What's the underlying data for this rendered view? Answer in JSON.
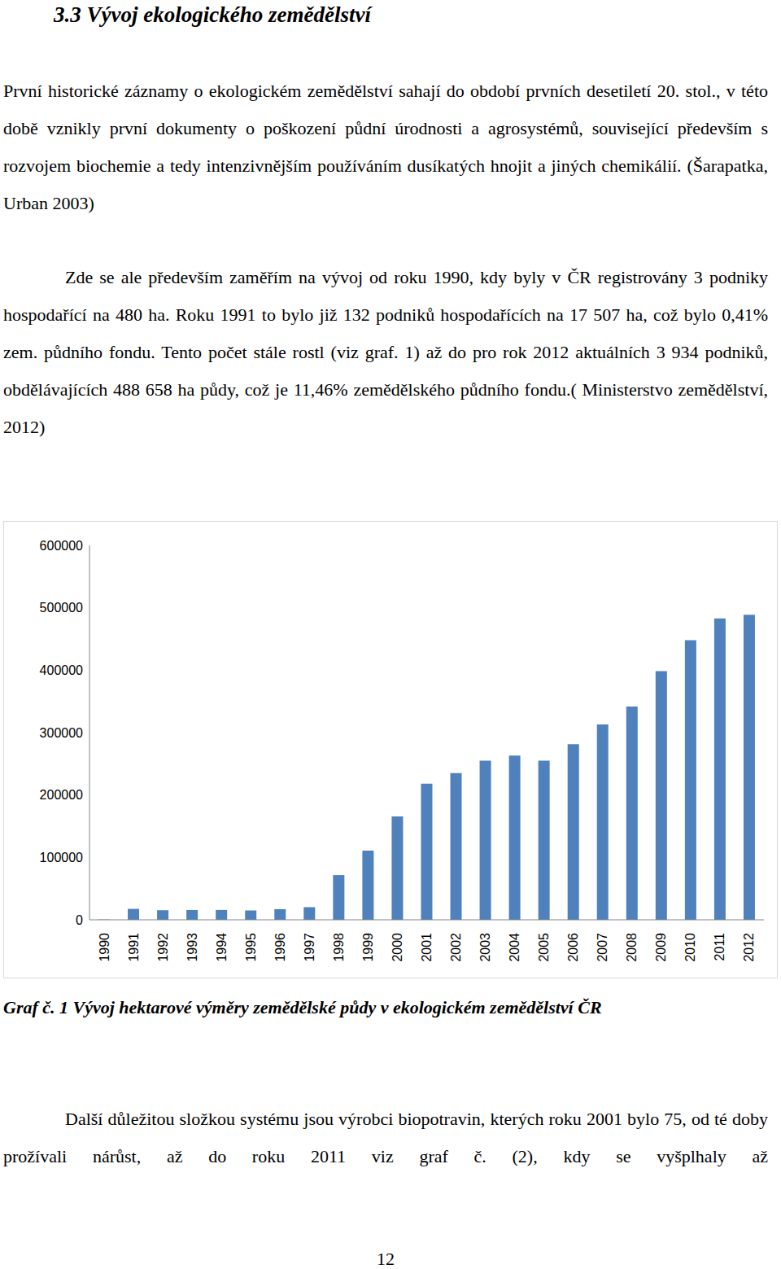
{
  "heading": "3.3 Vývoj ekologického zemědělství",
  "paragraphs": [
    "První historické záznamy o ekologickém zemědělství sahají do období prvních desetiletí 20. stol., v této době vznikly první dokumenty o poškození půdní úrodnosti a agrosystémů, související především s rozvojem biochemie a tedy intenzivnějším používáním dusíkatých hnojit a jiných chemikálií. (Šarapatka, Urban 2003)",
    "Zde se ale především zaměřím na vývoj od roku 1990, kdy byly v ČR registrovány 3 podniky hospodařící na 480 ha. Roku 1991 to bylo již 132 podniků hospodařících na 17 507 ha, což bylo 0,41% zem. půdního fondu. Tento počet stále rostl (viz graf. 1) až do pro rok 2012 aktuálních 3 934 podniků, obdělávajících 488 658 ha půdy, což je 11,46% zemědělského půdního fondu.( Ministerstvo zemědělství, 2012)"
  ],
  "chart_data": {
    "type": "bar",
    "categories": [
      "1990",
      "1991",
      "1992",
      "1993",
      "1994",
      "1995",
      "1996",
      "1997",
      "1998",
      "1999",
      "2000",
      "2001",
      "2002",
      "2003",
      "2004",
      "2005",
      "2006",
      "2007",
      "2008",
      "2009",
      "2010",
      "2011",
      "2012"
    ],
    "values": [
      480,
      17507,
      15371,
      15667,
      15818,
      14982,
      17022,
      20239,
      71621,
      110756,
      165699,
      218114,
      235136,
      254995,
      263299,
      254982,
      281535,
      312890,
      341632,
      398407,
      448202,
      482927,
      488658
    ],
    "color": "#4f81bd",
    "ylim": [
      0,
      600000
    ],
    "yticks": [
      0,
      100000,
      200000,
      300000,
      400000,
      500000,
      600000
    ],
    "grid": false
  },
  "caption": "Graf č. 1 Vývoj hektarové výměry zemědělské půdy v ekologickém zemědělství ČR",
  "paragraphs_after": [
    "Další důležitou složkou systému jsou výrobci biopotravin, kterých roku 2001 bylo 75, od té doby prožívali nárůst, až do roku 2011 viz graf č. (2), kdy se vyšplhaly až"
  ],
  "page_number": "12"
}
